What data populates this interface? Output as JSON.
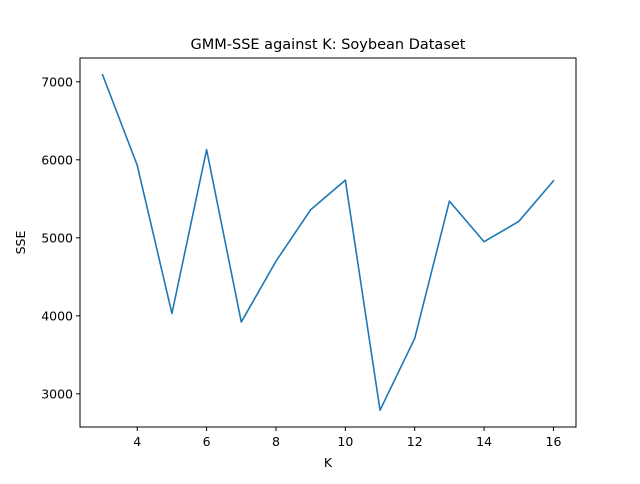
{
  "chart_data": {
    "type": "line",
    "title": "GMM-SSE against K: Soybean Dataset",
    "xlabel": "K",
    "ylabel": "SSE",
    "x": [
      3,
      4,
      5,
      6,
      7,
      8,
      9,
      10,
      11,
      12,
      13,
      14,
      15,
      16
    ],
    "series": [
      {
        "values": [
          7090,
          5930,
          4030,
          6130,
          3920,
          4700,
          5360,
          5740,
          2790,
          3710,
          5470,
          4950,
          5210,
          5730
        ],
        "color": "#1f77b4"
      }
    ],
    "xlim": [
      2.35,
      16.65
    ],
    "ylim": [
      2575,
      7305
    ],
    "xticks": [
      4,
      6,
      8,
      10,
      12,
      14,
      16
    ],
    "yticks": [
      3000,
      4000,
      5000,
      6000,
      7000
    ],
    "xtick_labels": [
      "4",
      "6",
      "8",
      "10",
      "12",
      "14",
      "16"
    ],
    "ytick_labels": [
      "3000",
      "4000",
      "5000",
      "6000",
      "7000"
    ],
    "grid": false,
    "legend": false
  }
}
